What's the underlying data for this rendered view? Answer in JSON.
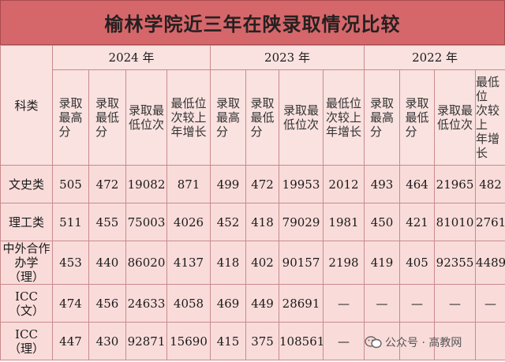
{
  "title": "榆林学院近三年在陕录取情况比较",
  "header": {
    "subject_label": "科类",
    "years": [
      "2024 年",
      "2023 年",
      "2022 年"
    ],
    "columns": [
      [
        "录取",
        "最高",
        "分"
      ],
      [
        "录取",
        "最低",
        "分"
      ],
      [
        "录取最",
        "低位次"
      ],
      [
        "最低位",
        "次较上",
        "年增长"
      ],
      [
        "录取",
        "最高",
        "分"
      ],
      [
        "录取",
        "最低",
        "分"
      ],
      [
        "录取最",
        "低位次"
      ],
      [
        "最低位",
        "次较上",
        "年增长"
      ],
      [
        "录取",
        "最高",
        "分"
      ],
      [
        "录取",
        "最低",
        "分"
      ],
      [
        "录取最",
        "低位次"
      ],
      [
        "最低位",
        "次较上",
        "年增长"
      ]
    ]
  },
  "rows": [
    {
      "subject": [
        "文史类"
      ],
      "cells": [
        "505",
        "472",
        "19082",
        "871",
        "499",
        "472",
        "19953",
        "2012",
        "493",
        "464",
        "21965",
        "482"
      ]
    },
    {
      "subject": [
        "理工类"
      ],
      "cells": [
        "511",
        "455",
        "75003",
        "4026",
        "452",
        "418",
        "79029",
        "1981",
        "450",
        "421",
        "81010",
        "2761"
      ]
    },
    {
      "subject": [
        "中外合作",
        "办学（理）"
      ],
      "cells": [
        "453",
        "440",
        "86020",
        "4137",
        "418",
        "402",
        "90157",
        "2198",
        "419",
        "405",
        "92355",
        "4489"
      ]
    },
    {
      "subject": [
        "ICC（文）"
      ],
      "cells": [
        "474",
        "456",
        "24633",
        "4058",
        "469",
        "449",
        "28691",
        "—",
        "—",
        "—",
        "—",
        "—"
      ]
    },
    {
      "subject": [
        "ICC（理）"
      ],
      "cells": [
        "447",
        "430",
        "92871",
        "15690",
        "415",
        "375",
        "108561",
        "—",
        "",
        "",
        "",
        ""
      ]
    }
  ],
  "watermark": {
    "icon": "wechat-icon",
    "text": "公众号 · 高教网"
  }
}
